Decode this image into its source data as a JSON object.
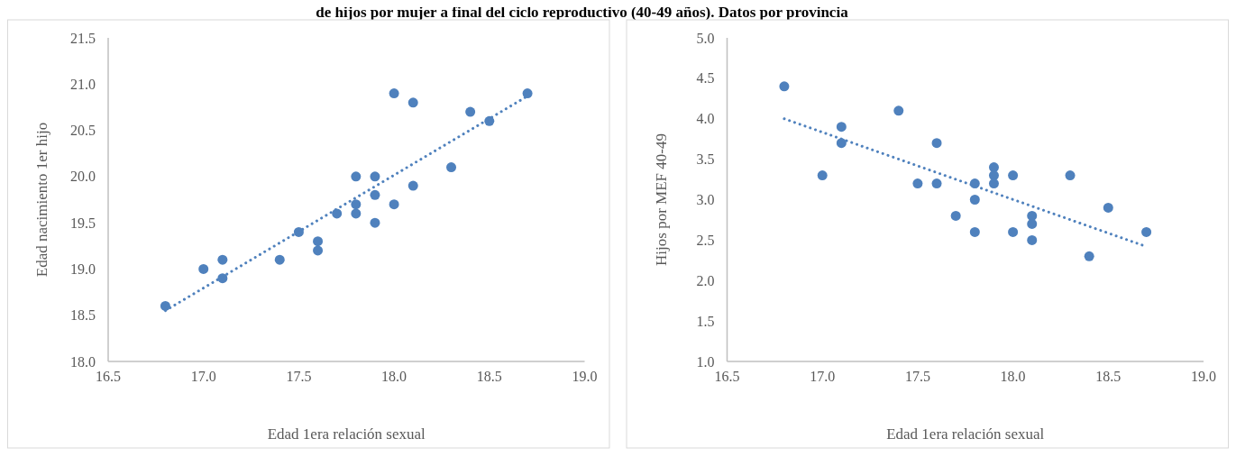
{
  "chart_data": [
    {
      "type": "scatter",
      "title": "de hijos por mujer a final del ciclo reproductivo (40-49 años). Datos por provincia",
      "xlabel": "Edad 1era relación sexual",
      "ylabel": "Edad nacimiento 1er hijo",
      "xlim": [
        16.5,
        19.0
      ],
      "xticks": [
        {
          "value": 16.5,
          "label": "16.5"
        },
        {
          "value": 17,
          "label": "17.0"
        },
        {
          "value": 17.5,
          "label": "17.5"
        },
        {
          "value": 18,
          "label": "18.0"
        },
        {
          "value": 18.5,
          "label": "18.5"
        },
        {
          "value": 19,
          "label": "19.0"
        }
      ],
      "ylim": [
        18.0,
        21.5
      ],
      "yticks": [
        {
          "value": 18,
          "label": "18.0"
        },
        {
          "value": 18.5,
          "label": "18.5"
        },
        {
          "value": 19,
          "label": "19.0"
        },
        {
          "value": 19.5,
          "label": "19.5"
        },
        {
          "value": 20,
          "label": "20.0"
        },
        {
          "value": 20.5,
          "label": "20.5"
        },
        {
          "value": 21,
          "label": "21.0"
        },
        {
          "value": 21.5,
          "label": "21.5"
        }
      ],
      "grid": false,
      "marker": "circle",
      "series": [
        {
          "type": "scatter",
          "color": "#4f81bd",
          "x": [
            16.8,
            17.0,
            17.1,
            17.1,
            17.4,
            17.5,
            17.6,
            17.6,
            17.7,
            17.8,
            17.8,
            17.8,
            17.9,
            17.9,
            17.9,
            18.0,
            18.0,
            18.1,
            18.1,
            18.3,
            18.4,
            18.5,
            18.7
          ],
          "values": [
            18.6,
            19.0,
            19.1,
            18.9,
            19.1,
            19.4,
            19.3,
            19.2,
            19.6,
            20.0,
            19.7,
            19.6,
            20.0,
            19.8,
            19.5,
            20.9,
            19.7,
            20.8,
            19.9,
            20.1,
            20.7,
            20.6,
            20.9
          ]
        },
        {
          "type": "line",
          "color": "#4f81bd",
          "line_style": "dotted",
          "marker": "none",
          "x": [
            16.8,
            18.7
          ],
          "values": [
            18.55,
            20.87
          ]
        }
      ]
    },
    {
      "type": "scatter",
      "xlabel": "Edad 1era relación sexual",
      "ylabel": "Hijos por MEF 40-49",
      "xlim": [
        16.5,
        19.0
      ],
      "xticks": [
        {
          "value": 16.5,
          "label": "16.5"
        },
        {
          "value": 17,
          "label": "17.0"
        },
        {
          "value": 17.5,
          "label": "17.5"
        },
        {
          "value": 18,
          "label": "18.0"
        },
        {
          "value": 18.5,
          "label": "18.5"
        },
        {
          "value": 19,
          "label": "19.0"
        }
      ],
      "ylim": [
        1.0,
        5.0
      ],
      "yticks": [
        {
          "value": 1,
          "label": "1.0"
        },
        {
          "value": 1.5,
          "label": "1.5"
        },
        {
          "value": 2,
          "label": "2.0"
        },
        {
          "value": 2.5,
          "label": "2.5"
        },
        {
          "value": 3,
          "label": "3.0"
        },
        {
          "value": 3.5,
          "label": "3.5"
        },
        {
          "value": 4,
          "label": "4.0"
        },
        {
          "value": 4.5,
          "label": "4.5"
        },
        {
          "value": 5,
          "label": "5.0"
        }
      ],
      "grid": false,
      "marker": "circle",
      "series": [
        {
          "type": "scatter",
          "color": "#4f81bd",
          "x": [
            16.8,
            17.0,
            17.1,
            17.1,
            17.4,
            17.5,
            17.6,
            17.6,
            17.7,
            17.8,
            17.8,
            17.8,
            17.9,
            17.9,
            17.9,
            18.0,
            18.0,
            18.1,
            18.1,
            18.1,
            18.3,
            18.4,
            18.5,
            18.7
          ],
          "values": [
            4.4,
            3.3,
            3.9,
            3.7,
            4.1,
            3.2,
            3.7,
            3.2,
            2.8,
            3.2,
            3.0,
            2.6,
            3.4,
            3.3,
            3.2,
            3.3,
            2.6,
            2.8,
            2.7,
            2.5,
            3.3,
            2.3,
            2.9,
            2.6
          ]
        },
        {
          "type": "line",
          "color": "#4f81bd",
          "line_style": "dotted",
          "marker": "none",
          "x": [
            16.8,
            18.7
          ],
          "values": [
            4.0,
            2.42
          ]
        }
      ]
    }
  ]
}
